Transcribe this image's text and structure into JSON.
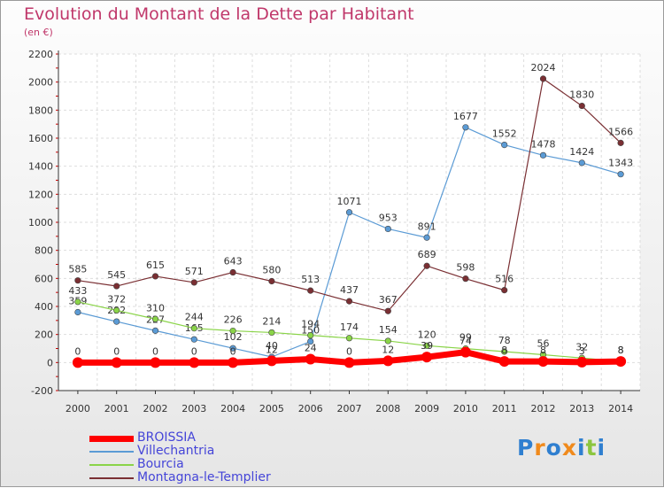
{
  "header": {
    "title": "Evolution du Montant de la Dette par Habitant",
    "subtitle": "(en €)"
  },
  "logo": {
    "text": "Proxiti"
  },
  "chart_data": {
    "type": "line",
    "title": "Evolution du Montant de la Dette par Habitant",
    "subtitle": "(en €)",
    "xlabel": "",
    "ylabel": "",
    "x": [
      2000,
      2001,
      2002,
      2003,
      2004,
      2005,
      2006,
      2007,
      2008,
      2009,
      2010,
      2011,
      2012,
      2013,
      2014
    ],
    "ylim": [
      -200,
      2200
    ],
    "yticks": [
      -200,
      0,
      200,
      400,
      600,
      800,
      1000,
      1200,
      1400,
      1600,
      1800,
      2000,
      2200
    ],
    "grid": true,
    "legend": "bottom-left",
    "series": [
      {
        "name": "BROISSIA",
        "color": "#ff0000",
        "highlight": true,
        "values": [
          0,
          0,
          0,
          0,
          0,
          12,
          24,
          0,
          12,
          39,
          74,
          8,
          8,
          3,
          8
        ]
      },
      {
        "name": "Villechantria",
        "color": "#5b9bd5",
        "values": [
          359,
          292,
          227,
          165,
          102,
          40,
          150,
          1071,
          953,
          891,
          1677,
          1552,
          1478,
          1424,
          1343
        ]
      },
      {
        "name": "Bourcia",
        "color": "#8ad448",
        "values": [
          433,
          372,
          310,
          244,
          226,
          214,
          194,
          174,
          154,
          120,
          99,
          78,
          56,
          32,
          8
        ]
      },
      {
        "name": "Montagna-le-Templier",
        "color": "#7a2f33",
        "values": [
          585,
          545,
          615,
          571,
          643,
          580,
          513,
          437,
          367,
          689,
          598,
          516,
          2024,
          1830,
          1566
        ]
      }
    ]
  }
}
